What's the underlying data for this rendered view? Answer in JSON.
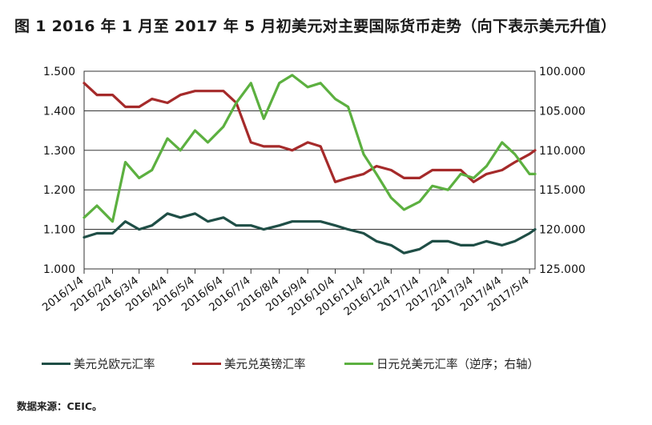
{
  "title": "图 1  2016 年 1 月至 2017 年 5 月初美元对主要国际货币走势（向下表示美元升值）",
  "source": "数据来源：CEIC。",
  "chart_data": {
    "type": "line",
    "grid": true,
    "legend_position": "bottom",
    "x_ticks": [
      "2016/1/4",
      "2016/2/4",
      "2016/3/4",
      "2016/4/4",
      "2016/5/4",
      "2016/6/4",
      "2016/7/4",
      "2016/8/4",
      "2016/9/4",
      "2016/10/4",
      "2016/11/4",
      "2016/12/4",
      "2017/1/4",
      "2017/2/4",
      "2017/3/4",
      "2017/4/4",
      "2017/5/4"
    ],
    "x": [
      "2016/1/4",
      "2016/1/18",
      "2016/2/4",
      "2016/2/18",
      "2016/3/4",
      "2016/3/18",
      "2016/4/4",
      "2016/4/18",
      "2016/5/4",
      "2016/5/18",
      "2016/6/4",
      "2016/6/18",
      "2016/7/4",
      "2016/7/18",
      "2016/8/4",
      "2016/8/18",
      "2016/9/4",
      "2016/9/18",
      "2016/10/4",
      "2016/10/18",
      "2016/11/4",
      "2016/11/18",
      "2016/12/4",
      "2016/12/18",
      "2017/1/4",
      "2017/1/18",
      "2017/2/4",
      "2017/2/18",
      "2017/3/4",
      "2017/3/18",
      "2017/4/4",
      "2017/4/18",
      "2017/5/4",
      "2017/5/10"
    ],
    "y_left": {
      "ticks": [
        "1.500",
        "1.400",
        "1.300",
        "1.200",
        "1.100",
        "1.000"
      ],
      "ylim": [
        1.0,
        1.5
      ]
    },
    "y_right": {
      "ticks": [
        "100.000",
        "105.000",
        "110.000",
        "115.000",
        "120.000",
        "125.000"
      ],
      "ylim": [
        100,
        125
      ],
      "inverted": true
    },
    "series": [
      {
        "name": "美元兑欧元汇率",
        "axis": "left",
        "color": "#1f4e46",
        "values": [
          1.08,
          1.09,
          1.09,
          1.12,
          1.1,
          1.11,
          1.14,
          1.13,
          1.14,
          1.12,
          1.13,
          1.11,
          1.11,
          1.1,
          1.11,
          1.12,
          1.12,
          1.12,
          1.11,
          1.1,
          1.09,
          1.07,
          1.06,
          1.04,
          1.05,
          1.07,
          1.07,
          1.06,
          1.06,
          1.07,
          1.06,
          1.07,
          1.09,
          1.1
        ]
      },
      {
        "name": "美元兑英镑汇率",
        "axis": "left",
        "color": "#a52a2a",
        "values": [
          1.47,
          1.44,
          1.44,
          1.41,
          1.41,
          1.43,
          1.42,
          1.44,
          1.45,
          1.45,
          1.45,
          1.42,
          1.32,
          1.31,
          1.31,
          1.3,
          1.32,
          1.31,
          1.22,
          1.23,
          1.24,
          1.26,
          1.25,
          1.23,
          1.23,
          1.25,
          1.25,
          1.25,
          1.22,
          1.24,
          1.25,
          1.27,
          1.29,
          1.3
        ]
      },
      {
        "name": "日元兑美元汇率（逆序；右轴）",
        "axis": "right",
        "color": "#5cb040",
        "values": [
          118.5,
          117.0,
          119.0,
          111.5,
          113.5,
          112.5,
          108.5,
          110.0,
          107.5,
          109.0,
          107.0,
          104.0,
          101.5,
          106.0,
          101.5,
          100.5,
          102.0,
          101.5,
          103.5,
          104.5,
          110.5,
          113.0,
          116.0,
          117.5,
          116.5,
          114.5,
          115.0,
          113.0,
          113.5,
          112.0,
          109.0,
          110.5,
          113.0,
          113.0
        ]
      }
    ]
  }
}
